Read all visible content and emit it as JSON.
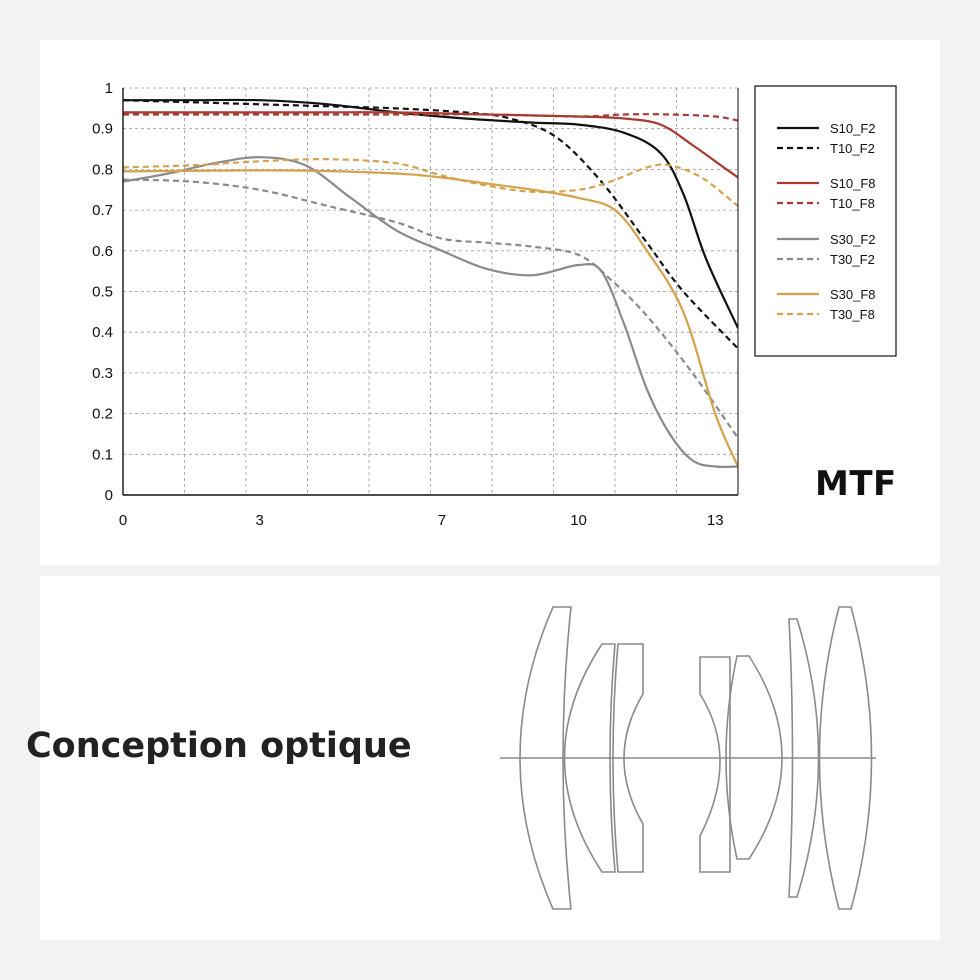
{
  "mtf_section": {
    "title": "MTF"
  },
  "optics_section": {
    "title": "Conception optique"
  },
  "chart_data": {
    "type": "line",
    "title": "",
    "xlabel": "",
    "ylabel": "",
    "xlim": [
      0,
      13.5
    ],
    "ylim": [
      0,
      1
    ],
    "grid": true,
    "legend_position": "right",
    "x_ticks": [
      0,
      3,
      7,
      10,
      13
    ],
    "y_ticks": [
      0,
      0.1,
      0.2,
      0.3,
      0.4,
      0.5,
      0.6,
      0.7,
      0.8,
      0.9,
      1
    ],
    "series": [
      {
        "name": "S10_F2",
        "color": "#111111",
        "dash": false,
        "x": [
          0,
          1.5,
          3,
          4.5,
          6,
          7.5,
          9,
          10,
          11,
          11.8,
          12.3,
          12.8,
          13.5
        ],
        "y": [
          0.97,
          0.97,
          0.97,
          0.96,
          0.94,
          0.925,
          0.915,
          0.91,
          0.89,
          0.84,
          0.74,
          0.58,
          0.41
        ]
      },
      {
        "name": "T10_F2",
        "color": "#111111",
        "dash": true,
        "x": [
          0,
          1.5,
          3,
          4.5,
          6,
          7.5,
          8.5,
          9.5,
          10.5,
          11.5,
          12.3,
          13.5
        ],
        "y": [
          0.97,
          0.965,
          0.96,
          0.955,
          0.95,
          0.94,
          0.925,
          0.88,
          0.77,
          0.62,
          0.5,
          0.36
        ]
      },
      {
        "name": "S10_F8",
        "color": "#a83a33",
        "dash": false,
        "x": [
          0,
          2,
          4,
          6,
          8,
          10,
          11,
          11.8,
          12.5,
          13,
          13.5
        ],
        "y": [
          0.94,
          0.94,
          0.94,
          0.94,
          0.935,
          0.93,
          0.925,
          0.91,
          0.86,
          0.82,
          0.78
        ]
      },
      {
        "name": "T10_F8",
        "color": "#a83a33",
        "dash": true,
        "x": [
          0,
          2,
          4,
          6,
          8,
          10,
          11,
          12,
          13,
          13.5
        ],
        "y": [
          0.935,
          0.935,
          0.935,
          0.935,
          0.935,
          0.93,
          0.935,
          0.935,
          0.93,
          0.92
        ]
      },
      {
        "name": "S30_F2",
        "color": "#8a8a8a",
        "dash": false,
        "x": [
          0,
          1,
          2,
          3,
          4,
          5,
          6,
          7,
          8,
          9,
          10,
          10.5,
          11,
          11.5,
          12,
          12.5,
          13,
          13.5
        ],
        "y": [
          0.77,
          0.79,
          0.815,
          0.83,
          0.81,
          0.73,
          0.65,
          0.6,
          0.555,
          0.54,
          0.565,
          0.55,
          0.42,
          0.26,
          0.15,
          0.085,
          0.07,
          0.07
        ]
      },
      {
        "name": "T30_F2",
        "color": "#8a8a8a",
        "dash": true,
        "x": [
          0,
          1.5,
          3,
          4.5,
          6,
          7,
          8,
          9,
          10,
          10.7,
          11.5,
          12.5,
          13.5
        ],
        "y": [
          0.775,
          0.77,
          0.75,
          0.71,
          0.67,
          0.63,
          0.62,
          0.61,
          0.59,
          0.53,
          0.44,
          0.3,
          0.14
        ]
      },
      {
        "name": "S30_F8",
        "color": "#d4a24c",
        "dash": false,
        "x": [
          0,
          2,
          4,
          6,
          7,
          8,
          9,
          10,
          10.8,
          11.5,
          12.3,
          13,
          13.5
        ],
        "y": [
          0.795,
          0.797,
          0.797,
          0.79,
          0.78,
          0.765,
          0.75,
          0.73,
          0.7,
          0.6,
          0.45,
          0.2,
          0.07
        ]
      },
      {
        "name": "T30_F8",
        "color": "#d4a24c",
        "dash": true,
        "x": [
          0,
          1.5,
          3,
          4.5,
          6,
          7,
          8,
          9,
          10,
          10.7,
          11.5,
          12,
          12.7,
          13.5
        ],
        "y": [
          0.805,
          0.81,
          0.82,
          0.825,
          0.815,
          0.785,
          0.76,
          0.745,
          0.75,
          0.77,
          0.805,
          0.81,
          0.78,
          0.71
        ]
      }
    ]
  }
}
